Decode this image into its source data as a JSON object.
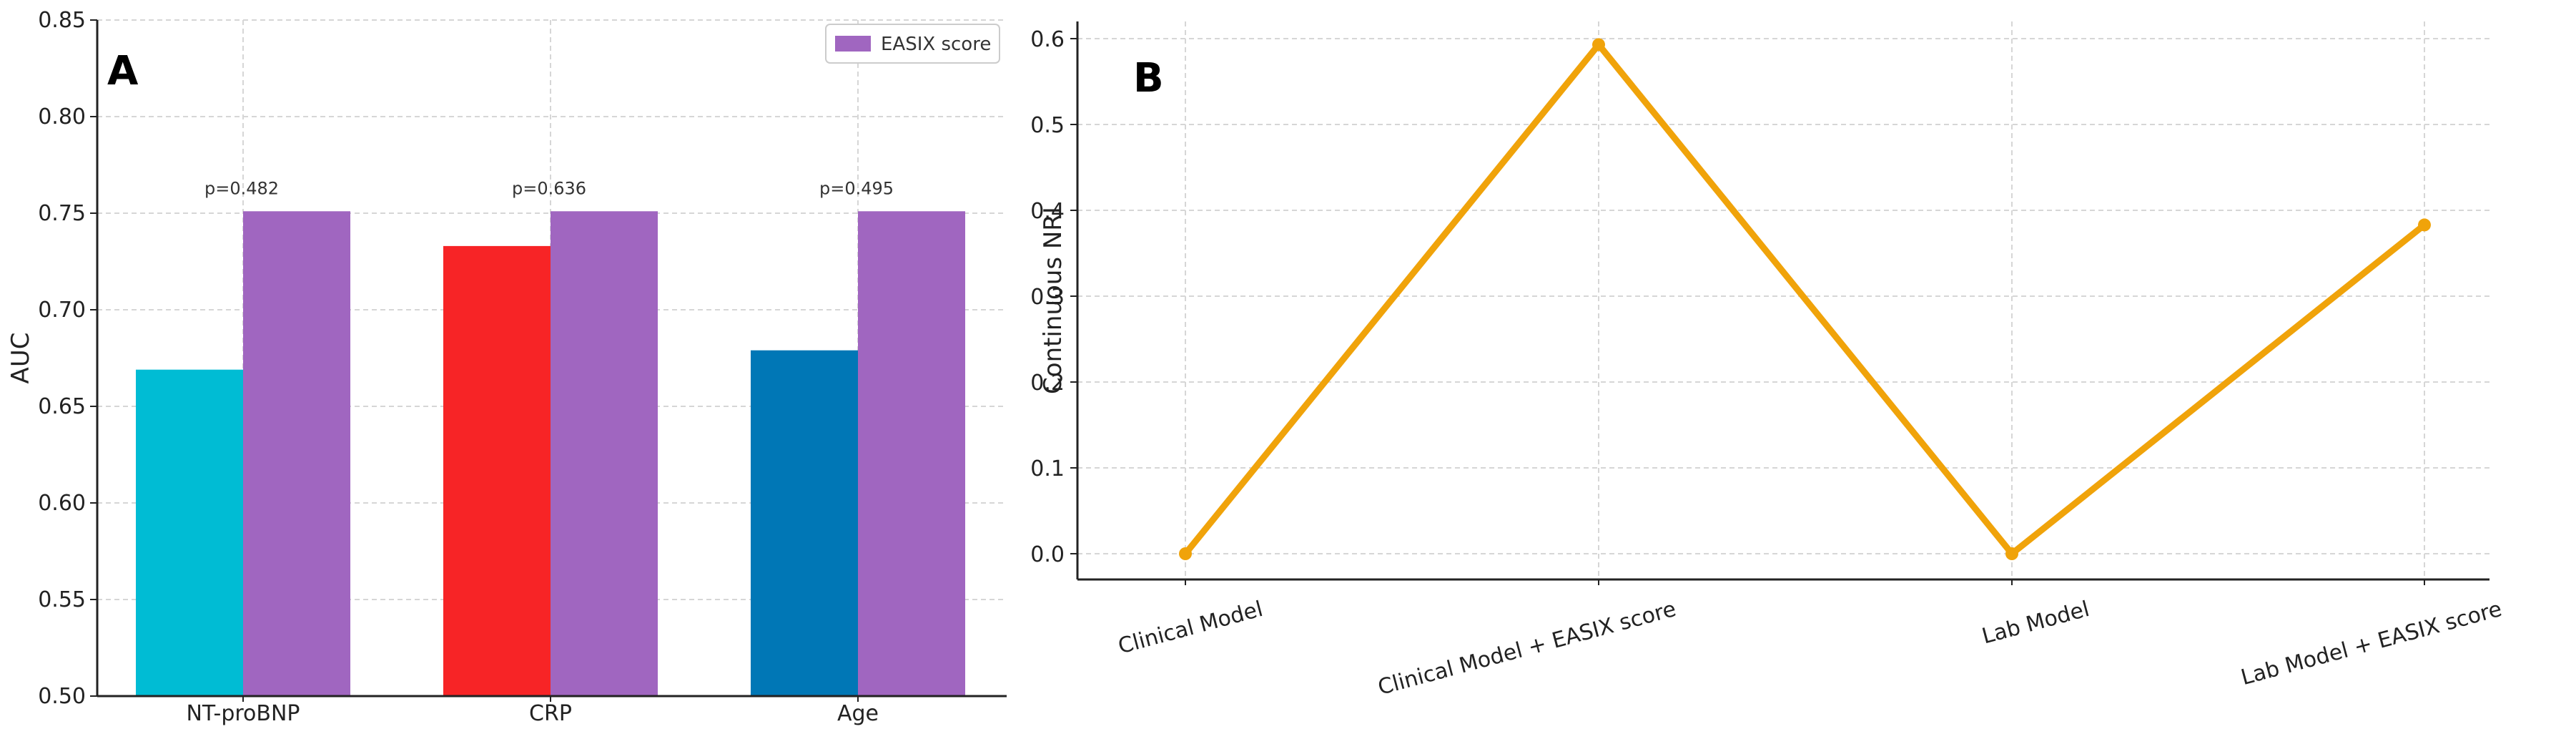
{
  "chart_data": [
    {
      "type": "bar",
      "panel_label": "A",
      "title": "",
      "xlabel": "",
      "ylabel": "AUC",
      "ylim": [
        0.5,
        0.85
      ],
      "yticks": [
        "0.50",
        "0.55",
        "0.60",
        "0.65",
        "0.70",
        "0.75",
        "0.80",
        "0.85"
      ],
      "grid": true,
      "legend_position": "top-right",
      "categories": [
        "NT-proBNP",
        "CRP",
        "Age"
      ],
      "comparator": {
        "values": [
          0.669,
          0.733,
          0.679
        ],
        "colors": [
          "#00bcd4",
          "#f72426",
          "#0077b6"
        ]
      },
      "series": [
        {
          "name": "EASIX score",
          "values": [
            0.751,
            0.751,
            0.751
          ],
          "color": "#a066c0"
        }
      ],
      "annotations": [
        "p=0.482",
        "p=0.636",
        "p=0.495"
      ]
    },
    {
      "type": "line",
      "panel_label": "B",
      "title": "",
      "xlabel": "",
      "ylabel": "Continuous NRI",
      "ylim": [
        -0.03,
        0.62
      ],
      "yticks": [
        "0.0",
        "0.1",
        "0.2",
        "0.3",
        "0.4",
        "0.5",
        "0.6"
      ],
      "grid": true,
      "categories": [
        "Clinical Model",
        "Clinical Model + EASIX score",
        "Lab Model",
        "Lab Model + EASIX score"
      ],
      "series": [
        {
          "name": "Continuous NRI",
          "values": [
            0.0,
            0.593,
            0.0,
            0.383
          ],
          "color": "#f0a30a"
        }
      ]
    }
  ]
}
